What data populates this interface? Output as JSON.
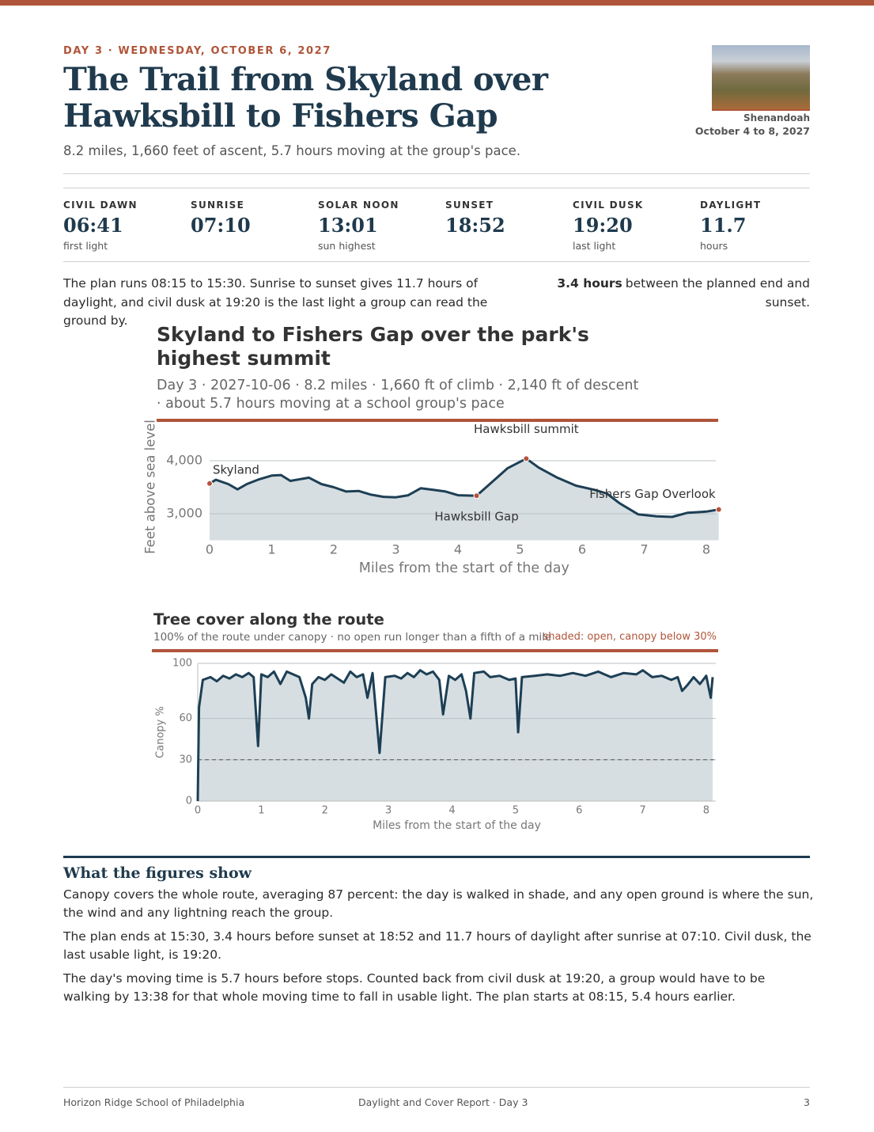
{
  "header": {
    "eyebrow": "DAY 3 · WEDNESDAY, OCTOBER 6, 2027",
    "title": "The Trail from Skyland over Hawksbill to Fishers Gap",
    "subtitle": "8.2 miles, 1,660 feet of ascent, 5.7 hours moving at the group's pace.",
    "photo_caption": [
      "Shenandoah",
      "October 4 to 8, 2027"
    ]
  },
  "stats": [
    {
      "label": "CIVIL DAWN",
      "value": "06:41",
      "note": "first light"
    },
    {
      "label": "SUNRISE",
      "value": "07:10"
    },
    {
      "label": "SOLAR NOON",
      "value": "13:01",
      "note": "sun highest"
    },
    {
      "label": "SUNSET",
      "value": "18:52"
    },
    {
      "label": "CIVIL DUSK",
      "value": "19:20",
      "note": "last light"
    },
    {
      "label": "DAYLIGHT",
      "value": "11.7",
      "note": "hours"
    }
  ],
  "plan": {
    "text": "The plan runs 08:15 to 15:30. Sunrise to sunset gives 11.7 hours of daylight, and civil dusk at 19:20 is the last light a group can read the ground by.",
    "margin_strong": "3.4 hours",
    "margin_text": "between the planned end and sunset."
  },
  "chart_data": [
    {
      "type": "area",
      "title": "Skyland to Fishers Gap over the park's highest summit",
      "subtitle": "Day 3 · 2027-10-06 · 8.2 miles · 1,660 ft of climb · 2,140 ft of descent · about 5.7 hours moving at a school group's pace",
      "x_label": "Miles from the start of the day",
      "y_label": "Feet above sea level",
      "color": "#1d3f55",
      "fill": "#d6dee1",
      "x": [
        0,
        0.1,
        0.3,
        0.45,
        0.6,
        0.8,
        1.0,
        1.15,
        1.3,
        1.6,
        1.8,
        2.0,
        2.2,
        2.4,
        2.6,
        2.8,
        3.0,
        3.2,
        3.4,
        3.6,
        3.8,
        4.0,
        4.3,
        4.6,
        4.8,
        5.1,
        5.3,
        5.6,
        5.9,
        6.2,
        6.4,
        6.6,
        6.9,
        7.2,
        7.45,
        7.7,
        8.0,
        8.2
      ],
      "values": [
        3570,
        3640,
        3560,
        3460,
        3560,
        3650,
        3720,
        3730,
        3620,
        3680,
        3560,
        3500,
        3420,
        3430,
        3360,
        3320,
        3310,
        3350,
        3480,
        3450,
        3420,
        3350,
        3340,
        3650,
        3860,
        4040,
        3870,
        3680,
        3530,
        3450,
        3380,
        3200,
        2990,
        2950,
        2940,
        3020,
        3040,
        3080
      ],
      "xlim": [
        0,
        8.2
      ],
      "ylim": [
        2500,
        4200
      ],
      "xticks": [
        0,
        1,
        2,
        3,
        4,
        5,
        6,
        7,
        8
      ],
      "yticks": [
        {
          "value": 3000,
          "label": "3,000"
        },
        {
          "value": 4000,
          "label": "4,000"
        }
      ],
      "grid": true,
      "annotations": [
        {
          "x": 0,
          "y": 3570,
          "label": "Skyland"
        },
        {
          "x": 4.3,
          "y": 3340,
          "label": "Hawksbill Gap"
        },
        {
          "x": 5.1,
          "y": 4040,
          "label": "Hawksbill summit"
        },
        {
          "x": 8.2,
          "y": 3080,
          "label": "Fishers Gap Overlook"
        }
      ],
      "marker_color": "#b5533c"
    },
    {
      "type": "area",
      "title": "Tree cover along the route",
      "subtitle": "100% of the route under canopy · no open run longer than a fifth of a mile",
      "note": "shaded: open, canopy below 30%",
      "x_label": "Miles from the start of the day",
      "y_label": "Canopy %",
      "color": "#1d3f55",
      "fill": "#d6dee1",
      "x": [
        0,
        0.02,
        0.08,
        0.2,
        0.3,
        0.4,
        0.5,
        0.6,
        0.7,
        0.8,
        0.88,
        0.95,
        1.0,
        1.1,
        1.2,
        1.3,
        1.4,
        1.5,
        1.6,
        1.7,
        1.75,
        1.8,
        1.9,
        2.0,
        2.1,
        2.2,
        2.3,
        2.4,
        2.5,
        2.6,
        2.67,
        2.75,
        2.86,
        2.95,
        3.1,
        3.2,
        3.3,
        3.4,
        3.5,
        3.6,
        3.7,
        3.8,
        3.86,
        3.95,
        4.05,
        4.15,
        4.22,
        4.29,
        4.35,
        4.5,
        4.6,
        4.75,
        4.9,
        5.0,
        5.04,
        5.1,
        5.3,
        5.5,
        5.7,
        5.9,
        6.1,
        6.3,
        6.5,
        6.7,
        6.9,
        7.0,
        7.15,
        7.3,
        7.45,
        7.55,
        7.62,
        7.7,
        7.8,
        7.9,
        8.0,
        8.07,
        8.1
      ],
      "values": [
        0,
        68,
        88,
        90,
        87,
        91,
        89,
        92,
        90,
        93,
        90,
        40,
        92,
        90,
        94,
        85,
        94,
        92,
        90,
        75,
        60,
        85,
        90,
        88,
        92,
        89,
        86,
        94,
        90,
        92,
        75,
        93,
        35,
        90,
        91,
        89,
        93,
        90,
        95,
        92,
        94,
        88,
        63,
        91,
        88,
        92,
        80,
        60,
        93,
        94,
        90,
        91,
        88,
        89,
        50,
        90,
        91,
        92,
        91,
        93,
        91,
        94,
        90,
        93,
        92,
        95,
        90,
        91,
        88,
        90,
        80,
        84,
        90,
        85,
        91,
        75,
        90
      ],
      "xlim": [
        0,
        8.15
      ],
      "ylim": [
        0,
        100
      ],
      "xticks": [
        0,
        1,
        2,
        3,
        4,
        5,
        6,
        7,
        8
      ],
      "yticks": [
        0,
        30,
        60,
        100
      ],
      "grid": true,
      "threshold": 30
    }
  ],
  "section": {
    "title": "What the figures show",
    "paragraphs": [
      "Canopy covers the whole route, averaging 87 percent: the day is walked in shade, and any open ground is where the sun, the wind and any lightning reach the group.",
      "The plan ends at 15:30, 3.4 hours before sunset at 18:52 and 11.7 hours of daylight after sunrise at 07:10. Civil dusk, the last usable light, is 19:20.",
      "The day's moving time is 5.7 hours before stops. Counted back from civil dusk at 19:20, a group would have to be walking by 13:38 for that whole moving time to fall in usable light. The plan starts at 08:15, 5.4 hours earlier."
    ]
  },
  "footer": {
    "left": "Horizon Ridge School of Philadelphia",
    "center": "Daylight and Cover Report · Day 3",
    "right": "3"
  }
}
